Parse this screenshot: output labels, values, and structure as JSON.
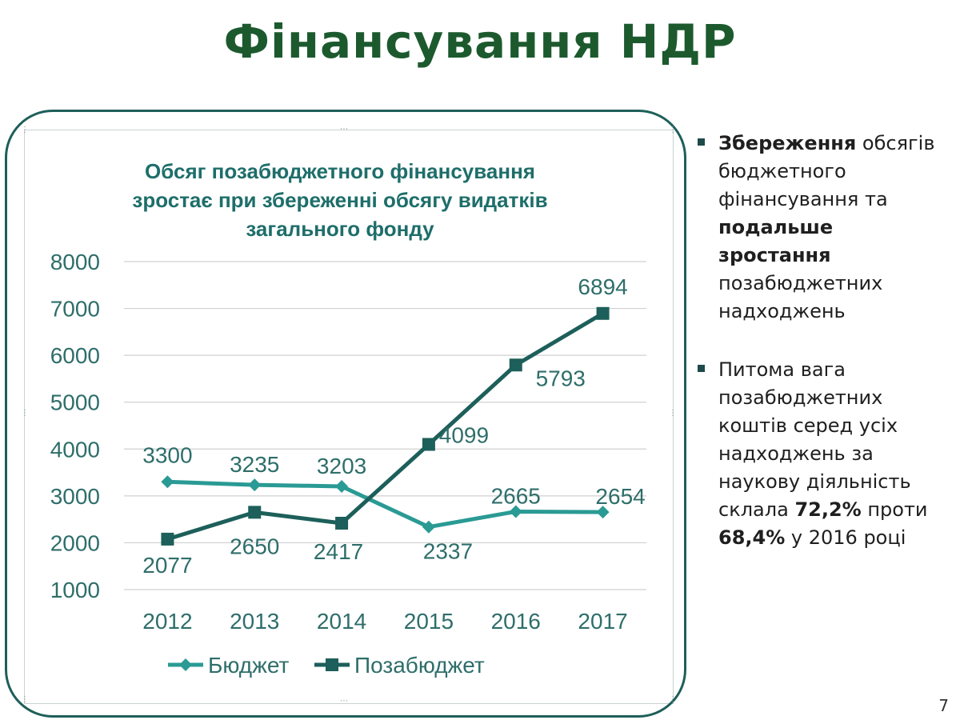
{
  "slide": {
    "title": "Фінансування НДР",
    "page_number": "7"
  },
  "notes": {
    "bullet1": {
      "part1": "Збереження",
      "part2": "обсягів бюджетного фінансування та",
      "part3": "подальше зростання",
      "part4": "позабюджетних надходжень"
    },
    "bullet2": {
      "part1": "Питома вага позабюджетних коштів серед усіх надходжень за наукову діяльність склала",
      "part2": "72,2%",
      "part3": "проти",
      "part4": "68,4%",
      "part5": "у 2016 році"
    }
  },
  "colors": {
    "budget": "#2a9a94",
    "extra_budget": "#1d5f5a",
    "grid": "#d0d0d0",
    "axis_text": "#2e6e6a",
    "title_green": "#1c5a2e"
  },
  "chart_data": {
    "type": "line",
    "title_lines": [
      "Обсяг позабюджетного фінансування",
      "зростає при збереженні обсягу видатків",
      "загального фонду"
    ],
    "categories": [
      "2012",
      "2013",
      "2014",
      "2015",
      "2016",
      "2017"
    ],
    "ylim": [
      1000,
      8000
    ],
    "yticks": [
      1000,
      2000,
      3000,
      4000,
      5000,
      6000,
      7000,
      8000
    ],
    "grid": true,
    "legend": "bottom",
    "series": [
      {
        "name": "Бюджет",
        "values": [
          3300,
          3235,
          3203,
          2337,
          2665,
          2654
        ],
        "marker": "diamond"
      },
      {
        "name": "Позабюджет",
        "values": [
          2077,
          2650,
          2417,
          4099,
          5793,
          6894
        ],
        "marker": "square"
      }
    ]
  }
}
